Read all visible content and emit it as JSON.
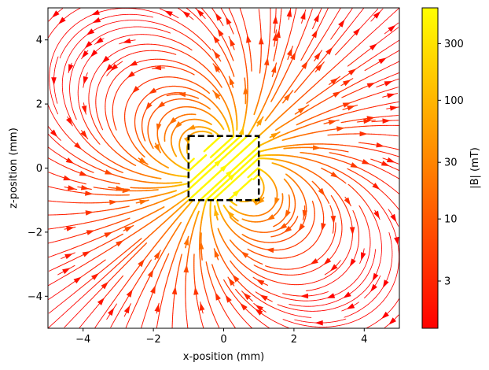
{
  "chart_data": {
    "type": "streamplot",
    "title": "",
    "xlabel": "x-position (mm)",
    "ylabel": "z-position (mm)",
    "xlim": [
      -5,
      5
    ],
    "ylim": [
      -5,
      5
    ],
    "x_ticks": [
      -4,
      -2,
      0,
      2,
      4
    ],
    "y_ticks": [
      -4,
      -2,
      0,
      2,
      4
    ],
    "x_tick_labels": [
      "−4",
      "−2",
      "0",
      "2",
      "4"
    ],
    "y_tick_labels": [
      "−4",
      "−2",
      "0",
      "2",
      "4"
    ],
    "grid": false,
    "magnet_outline": {
      "x": [
        -1,
        1
      ],
      "z": [
        -1,
        1
      ],
      "style": "dashed",
      "color": "#000000"
    },
    "colorbar": {
      "label": "|B| (mT)",
      "scale": "log",
      "range": [
        1.2,
        600
      ],
      "ticks": [
        3,
        10,
        30,
        100,
        300
      ],
      "tick_labels": [
        "3",
        "10",
        "30",
        "100",
        "300"
      ],
      "colormap": "autumn",
      "color_low": "#ff0000",
      "color_high": "#ffff00"
    }
  }
}
